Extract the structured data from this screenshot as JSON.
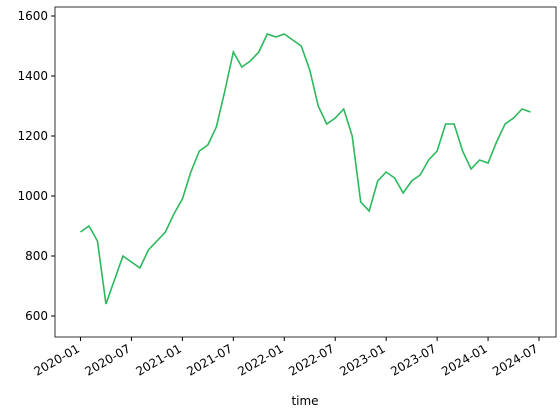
{
  "chart_data": {
    "type": "line",
    "x_label": "time",
    "x": [
      "2020-01",
      "2020-02",
      "2020-03",
      "2020-04",
      "2020-05",
      "2020-06",
      "2020-07",
      "2020-08",
      "2020-09",
      "2020-10",
      "2020-11",
      "2020-12",
      "2021-01",
      "2021-02",
      "2021-03",
      "2021-04",
      "2021-05",
      "2021-06",
      "2021-07",
      "2021-08",
      "2021-09",
      "2021-10",
      "2021-11",
      "2021-12",
      "2022-01",
      "2022-02",
      "2022-03",
      "2022-04",
      "2022-05",
      "2022-06",
      "2022-07",
      "2022-08",
      "2022-09",
      "2022-10",
      "2022-11",
      "2022-12",
      "2023-01",
      "2023-02",
      "2023-03",
      "2023-04",
      "2023-05",
      "2023-06",
      "2023-07",
      "2023-08",
      "2023-09",
      "2023-10",
      "2023-11",
      "2023-12",
      "2024-01",
      "2024-02",
      "2024-03",
      "2024-04",
      "2024-05",
      "2024-06"
    ],
    "series": [
      {
        "color": "#2cb85c",
        "values": [
          880,
          900,
          850,
          640,
          720,
          800,
          780,
          760,
          820,
          850,
          880,
          940,
          990,
          1080,
          1150,
          1170,
          1230,
          1350,
          1480,
          1430,
          1450,
          1480,
          1540,
          1530,
          1540,
          1520,
          1500,
          1420,
          1300,
          1240,
          1260,
          1290,
          1200,
          980,
          950,
          1050,
          1080,
          1060,
          1010,
          1050,
          1070,
          1120,
          1150,
          1240,
          1240,
          1150,
          1090,
          1120,
          1110,
          1180,
          1240,
          1260,
          1290,
          1280
        ]
      }
    ],
    "xlim": [
      "2019-10",
      "2024-09"
    ],
    "xticks": [
      "2020-01",
      "2020-07",
      "2021-01",
      "2021-07",
      "2022-01",
      "2022-07",
      "2023-01",
      "2023-07",
      "2024-01",
      "2024-07"
    ],
    "ylim": [
      530,
      1630
    ],
    "yticks": [
      600,
      800,
      1000,
      1200,
      1400,
      1600
    ]
  }
}
